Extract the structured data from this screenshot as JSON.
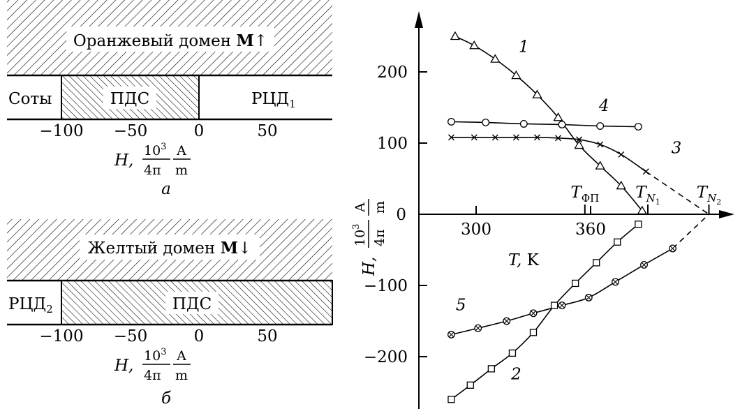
{
  "chart_data": [
    {
      "type": "diagram",
      "panel_label": "а",
      "domain_label": {
        "text": "Оранжевый домен ",
        "bold": "M",
        "arrow": "↑"
      },
      "regions": [
        {
          "label": "Соты"
        },
        {
          "label": "ПДС",
          "from": -100,
          "to": 0
        },
        {
          "label": "РЦД",
          "sub": "1"
        }
      ],
      "ticks": [
        -100,
        -50,
        0,
        50
      ],
      "tick_labels": [
        "−100",
        "−50",
        "0",
        "50"
      ],
      "xlabel": {
        "H": "H,",
        "num": "10",
        "sup": "3",
        "den": "4π",
        "unit_num": "A",
        "unit_den": "m"
      }
    },
    {
      "type": "diagram",
      "panel_label": "б",
      "domain_label": {
        "text": "Желтый домен ",
        "bold": "M",
        "arrow": "↓"
      },
      "regions": [
        {
          "label": "РЦД",
          "sub": "2"
        },
        {
          "label": "ПДС",
          "from": -100,
          "to": 90
        }
      ],
      "ticks": [
        -100,
        -50,
        0,
        50
      ],
      "tick_labels": [
        "−100",
        "−50",
        "0",
        "50"
      ],
      "xlabel": {
        "H": "H,",
        "num": "10",
        "sup": "3",
        "den": "4π",
        "unit_num": "A",
        "unit_den": "m"
      }
    },
    {
      "type": "line",
      "xlim": [
        275,
        435
      ],
      "ylim": [
        -265,
        265
      ],
      "x_ticks": [
        300,
        360
      ],
      "x_tick_labels": [
        "300",
        "360"
      ],
      "y_ticks": [
        200,
        100,
        0,
        -100,
        -200
      ],
      "y_tick_labels": [
        "200",
        "100",
        "0",
        "−100",
        "−200"
      ],
      "xlabel": {
        "T": "T,",
        "unit": " K"
      },
      "ylabel": {
        "H": "H,",
        "num": "10",
        "sup": "3",
        "den": "4π",
        "unit_num": "A",
        "unit_den": "m"
      },
      "temperature_marks": [
        {
          "x": 357,
          "label": "T",
          "sub": "ФП"
        },
        {
          "x": 390,
          "label": "T",
          "sub": "N",
          "subsub": "1"
        },
        {
          "x": 422,
          "label": "T",
          "sub": "N",
          "subsub": "2"
        }
      ],
      "series": [
        {
          "id": "1",
          "label": "1",
          "marker": "triangle",
          "x": [
            289,
            299,
            310,
            321,
            332,
            343,
            354,
            365,
            376,
            387
          ],
          "y": [
            250,
            237,
            218,
            195,
            168,
            136,
            97,
            68,
            40,
            5
          ],
          "solid_x_max": 400
        },
        {
          "id": "2",
          "label": "2",
          "marker": "square",
          "x": [
            287,
            297,
            308,
            319,
            330,
            341,
            352,
            363,
            374,
            385
          ],
          "y": [
            -260,
            -240,
            -217,
            -195,
            -166,
            -128,
            -97,
            -68,
            -39,
            -14
          ],
          "solid_x_max": 400
        },
        {
          "id": "3",
          "label": "3",
          "marker": "x",
          "x": [
            287,
            299,
            310,
            321,
            332,
            343,
            354,
            365,
            376,
            389
          ],
          "y": [
            108,
            108,
            108,
            108,
            108,
            107,
            105,
            98,
            84,
            60
          ],
          "solid_x_max": 390,
          "dashed_to": [
            422,
            0
          ]
        },
        {
          "id": "4",
          "label": "4",
          "marker": "circle",
          "x": [
            287,
            305,
            325,
            345,
            365,
            385
          ],
          "y": [
            130,
            129,
            127,
            126,
            124,
            123
          ],
          "solid_x_max": 400
        },
        {
          "id": "5",
          "label": "5",
          "marker": "circle-x",
          "x": [
            287,
            301,
            316,
            330,
            345,
            359,
            373,
            388,
            403
          ],
          "y": [
            -169,
            -160,
            -150,
            -139,
            -128,
            -117,
            -95,
            -71,
            -48
          ],
          "solid_x_max": 403,
          "dashed_to": [
            422,
            0
          ]
        }
      ],
      "curve_labels": [
        {
          "series": "1",
          "text": "1",
          "x": 325,
          "y": 228
        },
        {
          "series": "4",
          "text": "4",
          "x": 367,
          "y": 145
        },
        {
          "series": "3",
          "text": "3",
          "x": 405,
          "y": 86
        },
        {
          "series": "5",
          "text": "5",
          "x": 292,
          "y": -135
        },
        {
          "series": "2",
          "text": "2",
          "x": 321,
          "y": -232
        }
      ]
    }
  ]
}
